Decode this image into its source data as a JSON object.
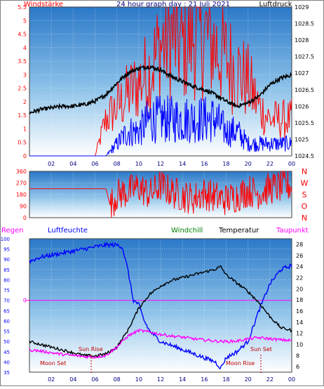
{
  "header": {
    "left_label": "Windstärke",
    "title": "24 hour graph day : 21 Juli 2021",
    "right_label": "Luftdruck"
  },
  "mid_header": {
    "left_label": "Regen",
    "labels": [
      "Luftfeuchte",
      "Windchill",
      "Temperatur",
      "Taupunkt"
    ]
  },
  "annotations": {
    "moon_set": "Moon Set",
    "sun_rise": "Sun Rise",
    "moon_rise": "Moon Rise",
    "sun_set": "Sun Set"
  },
  "colors": {
    "wind_gust": "#ff0000",
    "wind_avg": "#0000ff",
    "pressure": "#000000",
    "direction": "#ff0000",
    "humidity": "#0000ff",
    "windchill": "#008000",
    "temperature": "#000000",
    "dewpoint": "#ff00ff",
    "rain": "#ff00ff",
    "axis_text_left": "#ff0000",
    "axis_text_right": "#000000",
    "hour_text": "#000080"
  },
  "chart_data": [
    {
      "type": "line",
      "name_key": "wind_pressure",
      "x_hours": [
        "02",
        "04",
        "06",
        "08",
        "10",
        "12",
        "14",
        "16",
        "18",
        "20",
        "22",
        "00"
      ],
      "y_left_label": "Windstärke",
      "y_left_ticks": [
        "0",
        "0.5",
        "1",
        "1.5",
        "2",
        "2.5",
        "3",
        "3.5",
        "4",
        "4.5",
        "5",
        "5.5"
      ],
      "y_left_range": [
        0,
        5.5
      ],
      "y_right_label": "Luftdruck",
      "y_right_ticks": [
        "1024.5",
        "1025",
        "1025.5",
        "1026",
        "1026.5",
        "1027",
        "1027.5",
        "1028",
        "1028.5",
        "1029"
      ],
      "y_right_range": [
        1024.5,
        1029
      ],
      "pressure_series": {
        "hours": [
          0,
          1,
          2,
          3,
          4,
          5,
          6,
          7,
          8,
          9,
          10,
          11,
          12,
          13,
          14,
          15,
          16,
          17,
          18,
          19,
          20,
          21,
          22,
          23,
          24
        ],
        "values": [
          1025.8,
          1025.9,
          1025.95,
          1026.0,
          1026.0,
          1026.05,
          1026.15,
          1026.35,
          1026.7,
          1027.0,
          1027.15,
          1027.2,
          1027.1,
          1026.9,
          1026.75,
          1026.6,
          1026.5,
          1026.35,
          1026.15,
          1026.0,
          1026.1,
          1026.3,
          1026.65,
          1026.85,
          1026.95
        ]
      },
      "wind_gust_series": {
        "hours": [
          0,
          1,
          2,
          3,
          4,
          5,
          6,
          7,
          8,
          9,
          10,
          11,
          12,
          13,
          14,
          15,
          16,
          17,
          18,
          19,
          20,
          21,
          22,
          23,
          24
        ],
        "values": [
          0,
          0,
          0,
          0,
          0,
          0,
          0,
          1.5,
          2.0,
          2.5,
          3.0,
          3.5,
          4.5,
          5.0,
          4.5,
          5.0,
          5.0,
          4.5,
          4.0,
          3.5,
          3.0,
          2.0,
          1.5,
          1.5,
          1.5
        ]
      },
      "wind_avg_series": {
        "hours": [
          0,
          1,
          2,
          3,
          4,
          5,
          6,
          7,
          8,
          9,
          10,
          11,
          12,
          13,
          14,
          15,
          16,
          17,
          18,
          19,
          20,
          21,
          22,
          23,
          24
        ],
        "values": [
          0,
          0,
          0,
          0,
          0,
          0,
          0,
          0,
          0.5,
          1.0,
          1.0,
          1.5,
          1.5,
          1.5,
          1.5,
          1.5,
          1.5,
          1.5,
          1.0,
          1.0,
          0.5,
          0.5,
          0.5,
          0.5,
          0.5
        ]
      }
    },
    {
      "type": "line",
      "name_key": "wind_direction",
      "x_hours": [
        "02",
        "04",
        "06",
        "08",
        "10",
        "12",
        "14",
        "16",
        "18",
        "20",
        "22",
        "00"
      ],
      "y_left_ticks": [
        "0",
        "90",
        "180",
        "270",
        "360"
      ],
      "y_left_range": [
        0,
        360
      ],
      "y_right_ticks": [
        "N",
        "W",
        "S",
        "O",
        "N"
      ],
      "direction_series": {
        "hours": [
          0,
          1,
          2,
          3,
          4,
          5,
          6,
          7,
          7.4,
          8,
          9,
          10,
          11,
          12,
          13,
          14,
          15,
          16,
          17,
          18,
          19,
          20,
          21,
          22,
          23,
          24
        ],
        "values": [
          225,
          225,
          225,
          225,
          225,
          225,
          225,
          225,
          90,
          180,
          200,
          240,
          180,
          250,
          200,
          170,
          150,
          190,
          160,
          140,
          170,
          210,
          190,
          230,
          240,
          250
        ]
      }
    },
    {
      "type": "line",
      "name_key": "temp_humidity",
      "x_hours": [
        "02",
        "04",
        "06",
        "08",
        "10",
        "12",
        "14",
        "16",
        "18",
        "20",
        "22",
        "00"
      ],
      "y_left_ticks": [
        "35",
        "40",
        "45",
        "50",
        "55",
        "60",
        "65",
        "70",
        "75",
        "80",
        "85",
        "90",
        "95",
        "100"
      ],
      "y_left_range": [
        35,
        100
      ],
      "y_rain_tick": "0",
      "y_right_ticks": [
        "6",
        "8",
        "10",
        "12",
        "14",
        "16",
        "18",
        "20",
        "22",
        "24",
        "26",
        "28"
      ],
      "y_right_range": [
        5,
        29
      ],
      "humidity_series": {
        "name": "Luftfeuchte",
        "hours": [
          0,
          1,
          2,
          3,
          4,
          5,
          6,
          7,
          8,
          8.5,
          9,
          9.5,
          10,
          10.5,
          11,
          12,
          13,
          14,
          15,
          16,
          17,
          17.5,
          18,
          19,
          20,
          21,
          22,
          23,
          24
        ],
        "values": [
          89,
          91,
          92,
          93,
          94,
          95,
          96,
          97,
          97,
          96,
          85,
          70,
          68,
          60,
          55,
          50,
          48,
          46,
          44,
          42,
          40,
          37,
          42,
          45,
          50,
          65,
          78,
          85,
          87
        ]
      },
      "temperature_series": {
        "name": "Temperatur",
        "hours": [
          0,
          1,
          2,
          3,
          4,
          5,
          6,
          7,
          8,
          9,
          10,
          11,
          12,
          13,
          14,
          15,
          16,
          17,
          17.5,
          18,
          19,
          20,
          21,
          22,
          23,
          24
        ],
        "values": [
          10.5,
          10.0,
          9.5,
          9.0,
          8.5,
          8.0,
          7.9,
          8.3,
          9.5,
          12.5,
          16.5,
          19.0,
          20.5,
          21.5,
          22.0,
          22.5,
          23.0,
          23.5,
          24.0,
          22.5,
          21.0,
          19.5,
          17.5,
          15.0,
          13.0,
          12.5
        ]
      },
      "dewpoint_series": {
        "name": "Taupunkt",
        "hours": [
          0,
          1,
          2,
          3,
          4,
          5,
          6,
          7,
          8,
          9,
          10,
          11,
          12,
          13,
          14,
          15,
          16,
          17,
          18,
          19,
          20,
          21,
          22,
          23,
          24
        ],
        "values": [
          9.0,
          8.8,
          8.5,
          8.2,
          8.0,
          7.8,
          7.7,
          8.0,
          9.5,
          11.5,
          12.5,
          12.2,
          11.8,
          11.5,
          11.3,
          11.0,
          10.8,
          10.6,
          10.5,
          10.6,
          11.0,
          11.2,
          11.0,
          10.8,
          10.7
        ]
      },
      "rain_value": 0
    }
  ]
}
